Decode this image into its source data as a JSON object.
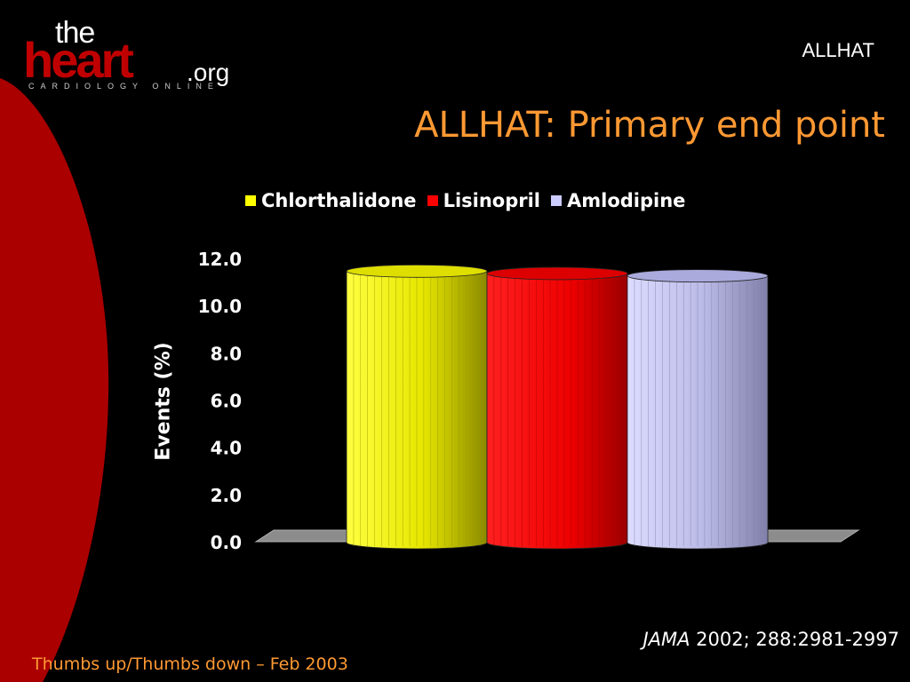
{
  "logo": {
    "the": "the",
    "heart": "heart",
    "org": ".org",
    "subtitle": "CARDIOLOGY ONLINE"
  },
  "header": {
    "tag": "ALLHAT"
  },
  "slide": {
    "title": "ALLHAT: Primary end point"
  },
  "citation": {
    "journal": "JAMA",
    "details": "2002; 288:2981-2997"
  },
  "footer": {
    "note": "Thumbs up/Thumbs down – Feb 2003"
  },
  "colors": {
    "accent_orange": "#ff9933",
    "swoosh_red": "#aa0000",
    "chlorthalidone": "#e6e600",
    "lisinopril": "#ff0000",
    "amlodipine": "#c8c8f0",
    "floor": "#8c8c8c"
  },
  "chart_data": {
    "type": "bar",
    "style": "3d-cylinder",
    "title": "",
    "xlabel": "",
    "ylabel": "Events (%)",
    "ylim": [
      0,
      12
    ],
    "yticks": [
      "0.0",
      "2.0",
      "4.0",
      "6.0",
      "8.0",
      "10.0",
      "12.0"
    ],
    "legend_position": "top",
    "grid": false,
    "series": [
      {
        "name": "Chlorthalidone",
        "value": 11.5,
        "color": "#e6e600"
      },
      {
        "name": "Lisinopril",
        "value": 11.4,
        "color": "#ff0000"
      },
      {
        "name": "Amlodipine",
        "value": 11.3,
        "color": "#c8c8f0"
      }
    ]
  }
}
